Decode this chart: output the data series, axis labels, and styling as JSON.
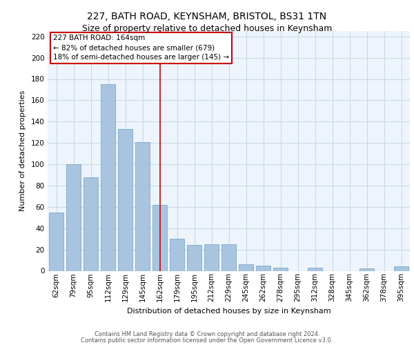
{
  "title1": "227, BATH ROAD, KEYNSHAM, BRISTOL, BS31 1TN",
  "title2": "Size of property relative to detached houses in Keynsham",
  "xlabel": "Distribution of detached houses by size in Keynsham",
  "ylabel": "Number of detached properties",
  "categories": [
    "62sqm",
    "79sqm",
    "95sqm",
    "112sqm",
    "129sqm",
    "145sqm",
    "162sqm",
    "179sqm",
    "195sqm",
    "212sqm",
    "229sqm",
    "245sqm",
    "262sqm",
    "278sqm",
    "295sqm",
    "312sqm",
    "328sqm",
    "345sqm",
    "362sqm",
    "378sqm",
    "395sqm"
  ],
  "values": [
    55,
    100,
    88,
    175,
    133,
    121,
    62,
    30,
    24,
    25,
    25,
    6,
    5,
    3,
    0,
    3,
    0,
    0,
    2,
    0,
    4
  ],
  "bar_color": "#a8c4e0",
  "bar_edgecolor": "#7aaac8",
  "grid_color": "#c8d8ea",
  "background_color": "#eef4fb",
  "vline_x": 6,
  "vline_color": "#cc0000",
  "annotation_text": "227 BATH ROAD: 164sqm\n← 82% of detached houses are smaller (679)\n18% of semi-detached houses are larger (145) →",
  "annotation_box_facecolor": "#ffffff",
  "annotation_box_edgecolor": "#cc0000",
  "ylim": [
    0,
    225
  ],
  "yticks": [
    0,
    20,
    40,
    60,
    80,
    100,
    120,
    140,
    160,
    180,
    200,
    220
  ],
  "footer1": "Contains HM Land Registry data © Crown copyright and database right 2024.",
  "footer2": "Contains public sector information licensed under the Open Government Licence v3.0.",
  "title1_fontsize": 10,
  "title2_fontsize": 9,
  "footer_fontsize": 6,
  "ylabel_fontsize": 8,
  "xlabel_fontsize": 8,
  "tick_fontsize": 7.5,
  "ann_fontsize": 7.5
}
